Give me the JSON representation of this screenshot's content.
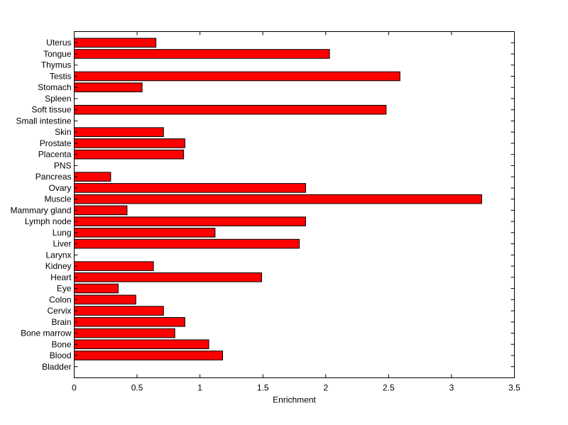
{
  "chart_data": {
    "type": "bar",
    "orientation": "horizontal",
    "xlabel": "Enrichment",
    "ylabel": "",
    "title": "",
    "xlim": [
      0,
      3.5
    ],
    "xticks": [
      0,
      0.5,
      1,
      1.5,
      2,
      2.5,
      3,
      3.5
    ],
    "xtick_labels": [
      "0",
      "0.5",
      "1",
      "1.5",
      "2",
      "2.5",
      "3",
      "3.5"
    ],
    "grid": false,
    "legend": "none",
    "bar_color": "#ff0000",
    "categories": [
      "Bladder",
      "Blood",
      "Bone",
      "Bone marrow",
      "Brain",
      "Cervix",
      "Colon",
      "Eye",
      "Heart",
      "Kidney",
      "Larynx",
      "Liver",
      "Lung",
      "Lymph node",
      "Mammary gland",
      "Muscle",
      "Ovary",
      "Pancreas",
      "PNS",
      "Placenta",
      "Prostate",
      "Skin",
      "Small intestine",
      "Soft tissue",
      "Spleen",
      "Stomach",
      "Testis",
      "Thymus",
      "Tongue",
      "Uterus"
    ],
    "values": [
      0,
      1.18,
      1.07,
      0.8,
      0.88,
      0.71,
      0.49,
      0.35,
      1.49,
      0.63,
      0,
      1.79,
      1.12,
      1.84,
      0.42,
      3.24,
      1.84,
      0.29,
      0,
      0.87,
      0.88,
      0.71,
      0,
      2.48,
      0,
      0.54,
      2.59,
      0,
      2.03,
      0.65
    ]
  }
}
